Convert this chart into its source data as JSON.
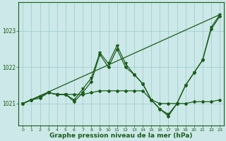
{
  "background_color": "#cce8e8",
  "line_color": "#1a5c1a",
  "grid_color": "#99cccc",
  "xlabel": "Graphe pression niveau de la mer (hPa)",
  "xlabel_fontsize": 6.5,
  "ylim": [
    1020.4,
    1023.8
  ],
  "xlim": [
    -0.5,
    23.5
  ],
  "yticks": [
    1021,
    1022,
    1023
  ],
  "xticks": [
    0,
    1,
    2,
    3,
    4,
    5,
    6,
    7,
    8,
    9,
    10,
    11,
    12,
    13,
    14,
    15,
    16,
    17,
    18,
    19,
    20,
    21,
    22,
    23
  ],
  "series": [
    {
      "x": [
        0,
        23
      ],
      "y": [
        1021.0,
        1023.45
      ],
      "marker": null,
      "markersize": 0,
      "linewidth": 0.9
    },
    {
      "x": [
        0,
        1,
        2,
        3,
        4,
        5,
        6,
        7,
        8,
        9,
        10,
        11,
        12,
        13,
        14,
        15,
        16,
        17,
        18,
        19,
        20,
        21,
        22,
        23
      ],
      "y": [
        1021.0,
        1021.1,
        1021.2,
        1021.3,
        1021.25,
        1021.25,
        1021.05,
        1021.3,
        1021.6,
        1022.35,
        1022.0,
        1022.5,
        1022.0,
        1021.8,
        1021.55,
        1021.1,
        1020.85,
        1020.65,
        1021.0,
        1021.5,
        1021.85,
        1022.2,
        1023.05,
        1023.4
      ],
      "marker": "D",
      "markersize": 2.0,
      "linewidth": 0.9
    },
    {
      "x": [
        0,
        1,
        2,
        3,
        4,
        5,
        6,
        7,
        8,
        9,
        10,
        11,
        12,
        13,
        14,
        15,
        16,
        17,
        18,
        19,
        20,
        21,
        22,
        23
      ],
      "y": [
        1021.0,
        1021.1,
        1021.2,
        1021.3,
        1021.25,
        1021.25,
        1021.1,
        1021.4,
        1021.7,
        1022.4,
        1022.1,
        1022.6,
        1022.1,
        1021.8,
        1021.55,
        1021.1,
        1020.85,
        1020.7,
        1021.0,
        1021.5,
        1021.85,
        1022.2,
        1023.1,
        1023.45
      ],
      "marker": "v",
      "markersize": 2.5,
      "linewidth": 0.9
    },
    {
      "x": [
        0,
        1,
        2,
        3,
        4,
        5,
        6,
        7,
        8,
        9,
        10,
        11,
        12,
        13,
        14,
        15,
        16,
        17,
        18,
        19,
        20,
        21,
        22,
        23
      ],
      "y": [
        1021.0,
        1021.1,
        1021.15,
        1021.3,
        1021.25,
        1021.25,
        1021.25,
        1021.25,
        1021.3,
        1021.35,
        1021.35,
        1021.35,
        1021.35,
        1021.35,
        1021.35,
        1021.1,
        1021.0,
        1021.0,
        1021.0,
        1021.0,
        1021.05,
        1021.05,
        1021.05,
        1021.1
      ],
      "marker": "D",
      "markersize": 2.0,
      "linewidth": 0.9
    }
  ]
}
